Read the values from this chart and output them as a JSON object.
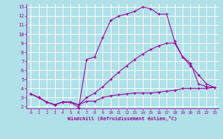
{
  "xlabel": "Windchill (Refroidissement éolien,°C)",
  "bg_color": "#b0e0e8",
  "line_color": "#990099",
  "grid_color": "#ffffff",
  "xlim": [
    -0.5,
    23.5
  ],
  "ylim": [
    1.8,
    13.3
  ],
  "xticks": [
    0,
    1,
    2,
    3,
    4,
    5,
    6,
    7,
    8,
    9,
    10,
    11,
    12,
    13,
    14,
    15,
    16,
    17,
    18,
    19,
    20,
    21,
    22,
    23
  ],
  "yticks": [
    2,
    3,
    4,
    5,
    6,
    7,
    8,
    9,
    10,
    11,
    12,
    13
  ],
  "line1_x": [
    0,
    1,
    2,
    3,
    4,
    5,
    6,
    7,
    8,
    9,
    10,
    11,
    12,
    13,
    14,
    15,
    16,
    17,
    18,
    19,
    20,
    21,
    22,
    23
  ],
  "line1_y": [
    3.4,
    3.0,
    2.5,
    2.2,
    2.5,
    2.5,
    2.2,
    2.6,
    2.6,
    3.0,
    3.2,
    3.3,
    3.4,
    3.5,
    3.5,
    3.5,
    3.6,
    3.7,
    3.8,
    4.0,
    4.0,
    4.0,
    4.0,
    4.1
  ],
  "line2_x": [
    0,
    1,
    2,
    3,
    4,
    5,
    6,
    7,
    8,
    9,
    10,
    11,
    12,
    13,
    14,
    15,
    16,
    17,
    18,
    19,
    20,
    21,
    22,
    23
  ],
  "line2_y": [
    3.4,
    3.0,
    2.5,
    2.2,
    2.5,
    2.5,
    2.2,
    3.0,
    3.5,
    4.2,
    5.0,
    5.8,
    6.5,
    7.2,
    7.8,
    8.3,
    8.7,
    9.0,
    9.0,
    7.5,
    6.5,
    5.5,
    4.5,
    4.1
  ],
  "line3_x": [
    0,
    1,
    2,
    3,
    4,
    5,
    6,
    7,
    8,
    9,
    10,
    11,
    12,
    13,
    14,
    15,
    16,
    17,
    18,
    19,
    20,
    21,
    22,
    23
  ],
  "line3_y": [
    3.4,
    3.0,
    2.5,
    2.2,
    2.5,
    2.5,
    1.9,
    7.2,
    7.5,
    9.6,
    11.5,
    12.0,
    12.2,
    12.5,
    13.0,
    12.8,
    12.2,
    12.2,
    9.2,
    7.5,
    6.8,
    4.5,
    4.2,
    4.1
  ]
}
